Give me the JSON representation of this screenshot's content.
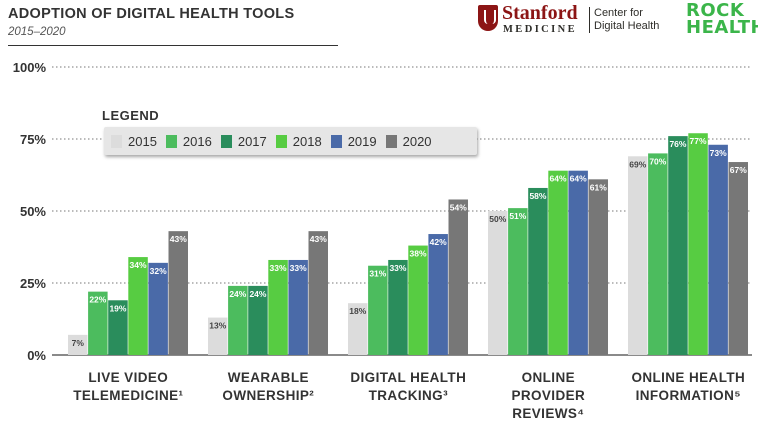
{
  "header": {
    "title": "ADOPTION OF DIGITAL HEALTH TOOLS",
    "subtitle": "2015–2020"
  },
  "logos": {
    "stanford": "Stanford",
    "medicine": "MEDICINE",
    "center_line1": "Center for",
    "center_line2": "Digital Health",
    "rock_line1": "ROCK",
    "rock_line2": "HEALTH"
  },
  "legend": {
    "title": "LEGEND",
    "placement": "top-left"
  },
  "chart_data": {
    "type": "bar",
    "ylim": [
      0,
      100
    ],
    "yticks": [
      "0%",
      "25%",
      "50%",
      "75%",
      "100%"
    ],
    "ytick_values": [
      0,
      25,
      50,
      75,
      100
    ],
    "grid": true,
    "categories": [
      {
        "line1": "LIVE VIDEO",
        "line2": "TELEMEDICINE¹",
        "line3": ""
      },
      {
        "line1": "WEARABLE",
        "line2": "OWNERSHIP²",
        "line3": ""
      },
      {
        "line1": "DIGITAL HEALTH",
        "line2": "TRACKING³",
        "line3": ""
      },
      {
        "line1": "ONLINE",
        "line2": "PROVIDER",
        "line3": "REVIEWS⁴"
      },
      {
        "line1": "ONLINE HEALTH",
        "line2": "INFORMATION⁵",
        "line3": ""
      }
    ],
    "series": [
      {
        "name": "2015",
        "color": "#dcdcdc",
        "values": [
          7,
          13,
          18,
          50,
          69
        ],
        "labels": [
          "7%",
          "13%",
          "18%",
          "50%",
          "69%"
        ]
      },
      {
        "name": "2016",
        "color": "#4cbc5e",
        "values": [
          22,
          24,
          31,
          51,
          70
        ],
        "labels": [
          "22%",
          "24%",
          "31%",
          "51%",
          "70%"
        ]
      },
      {
        "name": "2017",
        "color": "#2a8d5c",
        "values": [
          19,
          24,
          33,
          58,
          76
        ],
        "labels": [
          "19%",
          "24%",
          "33%",
          "58%",
          "76%"
        ]
      },
      {
        "name": "2018",
        "color": "#57cc42",
        "values": [
          34,
          33,
          38,
          64,
          77
        ],
        "labels": [
          "34%",
          "33%",
          "38%",
          "64%",
          "77%"
        ]
      },
      {
        "name": "2019",
        "color": "#4a6aa8",
        "values": [
          32,
          33,
          42,
          64,
          73
        ],
        "labels": [
          "32%",
          "33%",
          "42%",
          "64%",
          "73%"
        ]
      },
      {
        "name": "2020",
        "color": "#777777",
        "values": [
          43,
          43,
          54,
          61,
          67
        ],
        "labels": [
          "43%",
          "43%",
          "54%",
          "61%",
          "67%"
        ]
      }
    ]
  }
}
